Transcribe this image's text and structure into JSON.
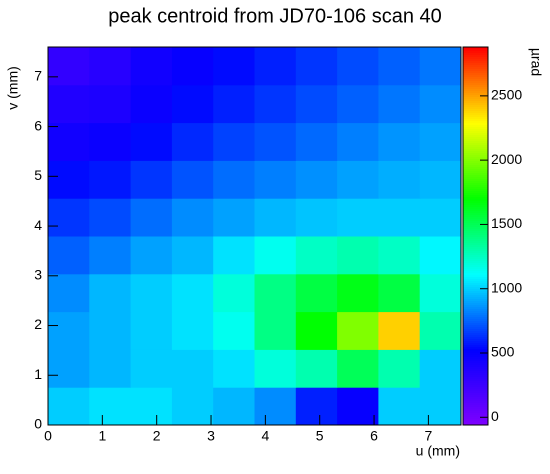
{
  "chart_data": {
    "type": "heatmap",
    "title": "peak centroid from JD70-106 scan 40",
    "xlabel": "u (mm)",
    "ylabel": "v (mm)",
    "zlabel": "µrad",
    "xbins": [
      0,
      0.76,
      1.52,
      2.28,
      3.04,
      3.8,
      4.56,
      5.32,
      6.08,
      6.84,
      7.6
    ],
    "ybins": [
      0,
      0.76,
      1.52,
      2.28,
      3.04,
      3.8,
      4.56,
      5.32,
      6.08,
      6.84,
      7.6
    ],
    "z": [
      [
        1000,
        1050,
        1050,
        1000,
        950,
        850,
        600,
        500,
        1000,
        1000
      ],
      [
        900,
        950,
        1000,
        1000,
        1050,
        1200,
        1300,
        1500,
        1300,
        1000
      ],
      [
        900,
        950,
        1000,
        1050,
        1150,
        1400,
        1700,
        2000,
        2400,
        1300
      ],
      [
        850,
        950,
        1000,
        1050,
        1200,
        1400,
        1550,
        1650,
        1550,
        1200
      ],
      [
        750,
        820,
        900,
        950,
        1050,
        1150,
        1250,
        1300,
        1250,
        1100
      ],
      [
        650,
        700,
        780,
        850,
        900,
        950,
        980,
        1000,
        1000,
        1000
      ],
      [
        550,
        580,
        650,
        720,
        780,
        820,
        860,
        900,
        930,
        950
      ],
      [
        450,
        480,
        550,
        620,
        680,
        720,
        770,
        820,
        870,
        900
      ],
      [
        380,
        400,
        480,
        550,
        600,
        650,
        700,
        750,
        800,
        850
      ],
      [
        300,
        350,
        450,
        500,
        550,
        600,
        650,
        700,
        750,
        800
      ]
    ],
    "xlim": [
      0,
      7.6
    ],
    "ylim": [
      0,
      7.6
    ],
    "zlim": [
      -60,
      2880
    ],
    "xticks": [
      0,
      1,
      2,
      3,
      4,
      5,
      6,
      7
    ],
    "yticks": [
      0,
      1,
      2,
      3,
      4,
      5,
      6,
      7
    ],
    "zticks": [
      0,
      500,
      1000,
      1500,
      2000,
      2500
    ],
    "colormap": [
      "#8000ff",
      "#0000ff",
      "#00ffff",
      "#00ff00",
      "#ffff00",
      "#ff0000"
    ]
  }
}
